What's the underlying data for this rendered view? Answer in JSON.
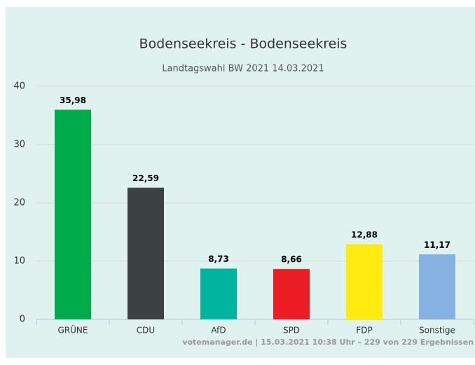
{
  "chart_data": {
    "type": "bar",
    "title": "Bodenseekreis - Bodenseekreis",
    "subtitle": "Landtagswahl BW 2021 14.03.2021",
    "categories": [
      "GRÜNE",
      "CDU",
      "AfD",
      "SPD",
      "FDP",
      "Sonstige"
    ],
    "values": [
      35.98,
      22.59,
      8.73,
      8.66,
      12.88,
      11.17
    ],
    "value_labels": [
      "35,98",
      "22,59",
      "8,73",
      "8,66",
      "12,88",
      "11,17"
    ],
    "colors": [
      "#00ab4a",
      "#3c4242",
      "#00b5a0",
      "#ec1c24",
      "#ffeb0f",
      "#85b2e0"
    ],
    "ylim": [
      0,
      40
    ],
    "yticks": [
      0,
      10,
      20,
      30,
      40
    ],
    "grid": true,
    "credit": "votemanager.de | 15.03.2021 10:38 Uhr – 229 von 229 Ergebnissen"
  }
}
